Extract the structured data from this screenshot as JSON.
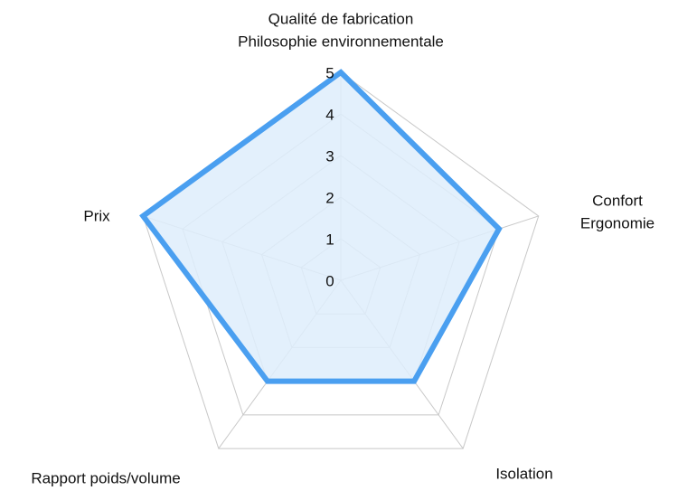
{
  "chart_data": {
    "type": "radar",
    "categories": [
      [
        "Qualité de fabrication",
        "Philosophie environnementale"
      ],
      [
        "Confort",
        "Ergonomie"
      ],
      [
        "Isolation"
      ],
      [
        "Rapport poids/volume"
      ],
      [
        "Prix"
      ]
    ],
    "values": [
      5,
      4,
      3,
      3,
      5
    ],
    "color": "#4a9ff0",
    "fill_color": "#deedfc",
    "ylim": [
      0,
      5
    ],
    "yticks": [
      0,
      1,
      2,
      3,
      4,
      5
    ],
    "grid": true
  }
}
